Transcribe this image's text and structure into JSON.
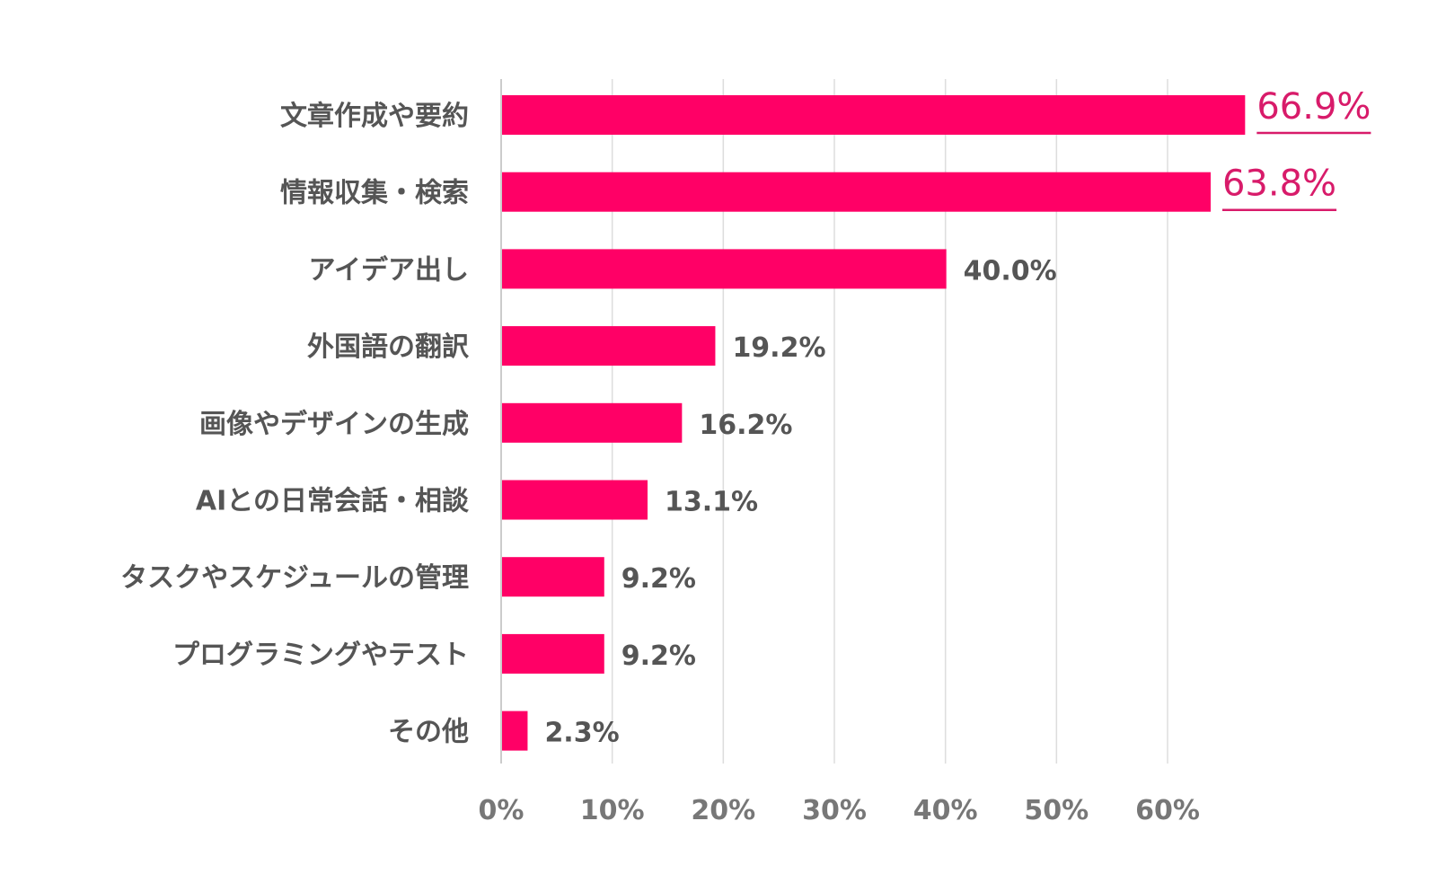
{
  "chart_data": {
    "type": "bar",
    "orientation": "horizontal",
    "categories": [
      "文章作成や要約",
      "情報収集・検索",
      "アイデア出し",
      "外国語の翻訳",
      "画像やデザインの生成",
      "AIとの日常会話・相談",
      "タスクやスケジュールの管理",
      "プログラミングやテスト",
      "その他"
    ],
    "values": [
      66.9,
      63.8,
      40.0,
      19.2,
      16.2,
      13.1,
      9.2,
      9.2,
      2.3
    ],
    "value_labels": [
      "66.9%",
      "63.8%",
      "40.0%",
      "19.2%",
      "16.2%",
      "13.1%",
      "9.2%",
      "9.2%",
      "2.3%"
    ],
    "highlighted": [
      true,
      true,
      false,
      false,
      false,
      false,
      false,
      false,
      false
    ],
    "x_ticks": [
      0,
      10,
      20,
      30,
      40,
      50,
      60
    ],
    "x_tick_labels": [
      "0%",
      "10%",
      "20%",
      "30%",
      "40%",
      "50%",
      "60%"
    ],
    "xlim": [
      0,
      60
    ],
    "grid": true,
    "bar_color": "#ff0066",
    "highlight_label_color": "#d81b6a",
    "title": "",
    "xlabel": "",
    "ylabel": ""
  }
}
